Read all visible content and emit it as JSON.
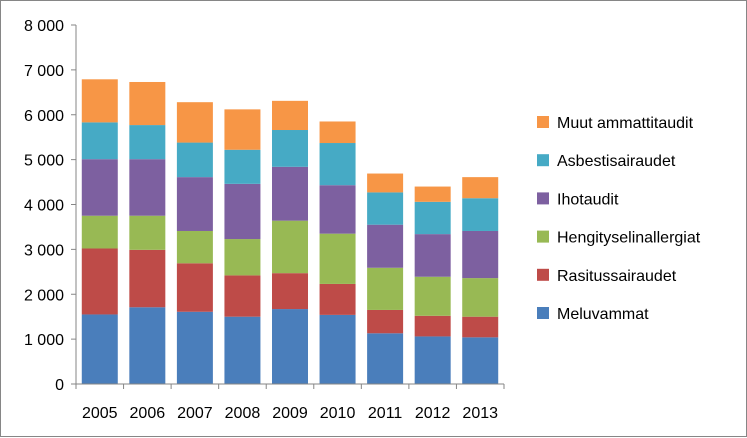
{
  "chart_data": {
    "type": "bar",
    "stacked": true,
    "title": "",
    "xlabel": "",
    "ylabel": "",
    "categories": [
      "2005",
      "2006",
      "2007",
      "2008",
      "2009",
      "2010",
      "2011",
      "2012",
      "2013"
    ],
    "ylim": [
      0,
      8000
    ],
    "yticks": [
      {
        "value": 0,
        "label": "0"
      },
      {
        "value": 1000,
        "label": "1 000"
      },
      {
        "value": 2000,
        "label": "2 000"
      },
      {
        "value": 3000,
        "label": "3 000"
      },
      {
        "value": 4000,
        "label": "4 000"
      },
      {
        "value": 5000,
        "label": "5 000"
      },
      {
        "value": 6000,
        "label": "6 000"
      },
      {
        "value": 7000,
        "label": "7 000"
      },
      {
        "value": 8000,
        "label": "8 000"
      }
    ],
    "grid": false,
    "legend_position": "right",
    "series": [
      {
        "name": "Meluvammat",
        "color": "#4a7ebb",
        "values": [
          1550,
          1710,
          1610,
          1500,
          1670,
          1540,
          1130,
          1060,
          1040
        ]
      },
      {
        "name": "Rasitussairaudet",
        "color": "#be4b48",
        "values": [
          1470,
          1280,
          1080,
          920,
          800,
          690,
          520,
          460,
          460
        ]
      },
      {
        "name": "Hengityselinallergiat",
        "color": "#98b954",
        "values": [
          730,
          760,
          720,
          810,
          1170,
          1120,
          940,
          870,
          860
        ]
      },
      {
        "name": "Ihotaudit",
        "color": "#7d60a0",
        "values": [
          1260,
          1260,
          1200,
          1230,
          1200,
          1080,
          960,
          950,
          1050
        ]
      },
      {
        "name": "Asbestisairaudet",
        "color": "#46aac5",
        "values": [
          820,
          760,
          770,
          760,
          820,
          940,
          720,
          720,
          730
        ]
      },
      {
        "name": "Muut ammattitaudit",
        "color": "#f79646",
        "values": [
          960,
          960,
          900,
          900,
          650,
          480,
          420,
          340,
          470
        ]
      }
    ]
  }
}
